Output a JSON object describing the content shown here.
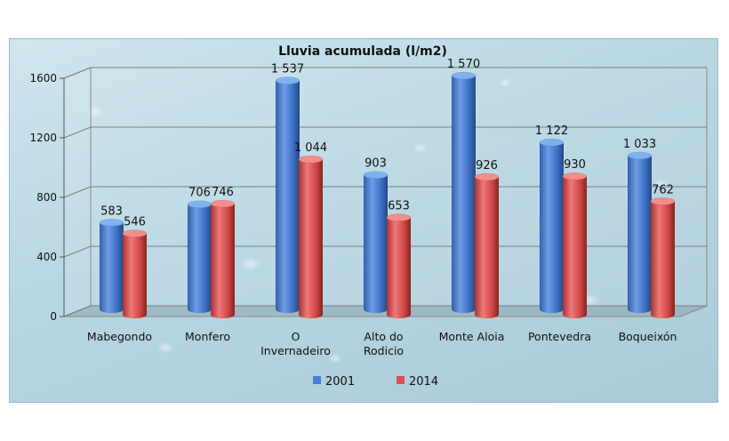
{
  "chart_data": {
    "type": "bar",
    "title": "Lluvia acumulada (l/m2)",
    "categories": [
      [
        "Mabegondo"
      ],
      [
        "Monfero"
      ],
      [
        "O",
        "Invernadeiro"
      ],
      [
        "Alto do",
        "Rodicio"
      ],
      [
        "Monte Aloia"
      ],
      [
        "Pontevedra"
      ],
      [
        "Boqueixón"
      ]
    ],
    "series": [
      {
        "name": "2001",
        "color": "#4a7fd0",
        "values": [
          583,
          706,
          1537,
          903,
          1570,
          1122,
          1033
        ],
        "labels": [
          "583",
          "706",
          "1 537",
          "903",
          "1 570",
          "1 122",
          "1 033"
        ]
      },
      {
        "name": "2014",
        "color": "#d9504f",
        "values": [
          546,
          746,
          1044,
          653,
          926,
          930,
          762
        ],
        "labels": [
          "546",
          "746",
          "1 044",
          "653",
          "926",
          "930",
          "762"
        ]
      }
    ],
    "ylim": [
      0,
      1600
    ],
    "yticks": [
      "0",
      "400",
      "800",
      "1200",
      "1600"
    ],
    "grid": true,
    "legend_position": "bottom"
  }
}
